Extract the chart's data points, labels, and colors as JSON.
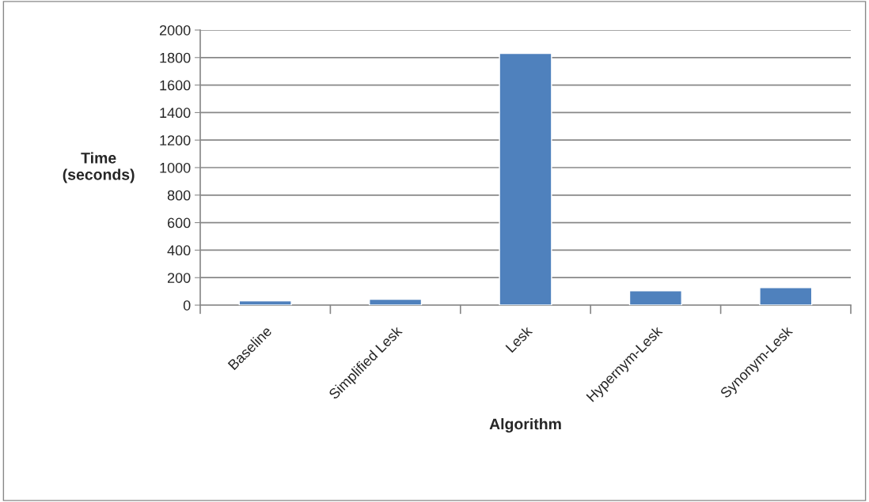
{
  "chart_data": {
    "type": "bar",
    "xlabel": "Algorithm",
    "ylabel": "Time\n(seconds)",
    "categories": [
      "Baseline",
      "Simplified Lesk",
      "Lesk",
      "Hypernym-Lesk",
      "Synonym-Lesk"
    ],
    "values": [
      32,
      43,
      1830,
      105,
      128
    ],
    "color": "#4f81bd",
    "ylim": [
      0,
      2000
    ],
    "yticks": [
      0,
      200,
      400,
      600,
      800,
      1000,
      1200,
      1400,
      1600,
      1800,
      2000
    ],
    "grid": "y"
  }
}
